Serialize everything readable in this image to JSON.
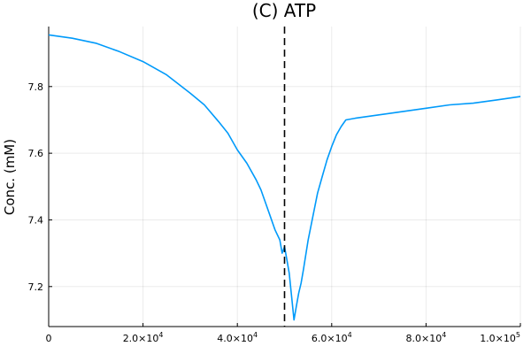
{
  "chart_data": {
    "type": "line",
    "title": "(C) ATP",
    "ylabel": "Conc. (mM)",
    "xlabel": "",
    "xlim": [
      0,
      100000
    ],
    "ylim": [
      7.08,
      7.98
    ],
    "grid": true,
    "x_ticks": [
      {
        "value": 0,
        "base": "0",
        "exp": ""
      },
      {
        "value": 20000,
        "base": "2.0×10",
        "exp": "4"
      },
      {
        "value": 40000,
        "base": "4.0×10",
        "exp": "4"
      },
      {
        "value": 60000,
        "base": "6.0×10",
        "exp": "4"
      },
      {
        "value": 80000,
        "base": "8.0×10",
        "exp": "4"
      },
      {
        "value": 100000,
        "base": "1.0×10",
        "exp": "5"
      }
    ],
    "y_ticks": [
      {
        "value": 7.2,
        "label": "7.2"
      },
      {
        "value": 7.4,
        "label": "7.4"
      },
      {
        "value": 7.6,
        "label": "7.6"
      },
      {
        "value": 7.8,
        "label": "7.8"
      }
    ],
    "vline": {
      "x": 50000,
      "color": "#000000",
      "style": "dashed"
    },
    "series": [
      {
        "color": "#009AFA",
        "x": [
          0,
          5000,
          10000,
          15000,
          20000,
          25000,
          30000,
          33000,
          36000,
          38000,
          40000,
          42000,
          44000,
          45000,
          46000,
          47000,
          48000,
          49000,
          49500,
          50000,
          50500,
          51000,
          51500,
          52000,
          52500,
          53000,
          53500,
          54000,
          55000,
          56000,
          57000,
          58000,
          59000,
          60000,
          61000,
          62000,
          63000,
          65000,
          70000,
          75000,
          80000,
          85000,
          90000,
          95000,
          100000
        ],
        "y": [
          7.955,
          7.945,
          7.93,
          7.905,
          7.875,
          7.835,
          7.78,
          7.745,
          7.695,
          7.66,
          7.61,
          7.57,
          7.52,
          7.49,
          7.45,
          7.41,
          7.37,
          7.34,
          7.3,
          7.32,
          7.28,
          7.24,
          7.17,
          7.1,
          7.14,
          7.18,
          7.21,
          7.25,
          7.34,
          7.41,
          7.48,
          7.53,
          7.58,
          7.62,
          7.655,
          7.68,
          7.7,
          7.705,
          7.715,
          7.725,
          7.735,
          7.745,
          7.75,
          7.76,
          7.77
        ]
      }
    ]
  }
}
